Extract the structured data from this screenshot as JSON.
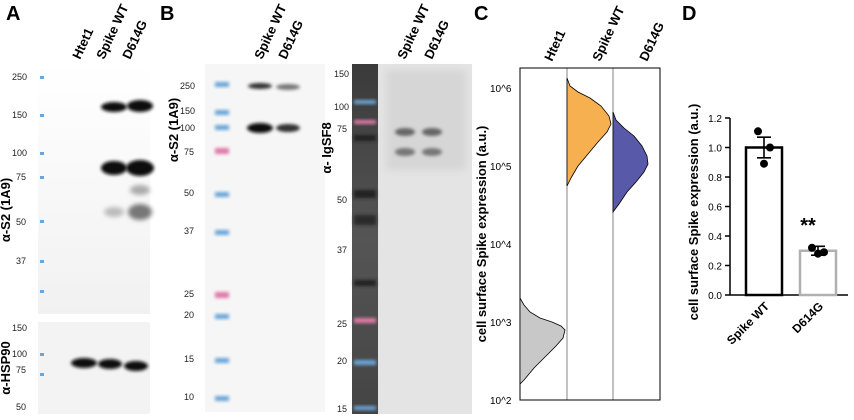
{
  "panels": {
    "a": {
      "label": "A",
      "lanes": [
        "Htet1",
        "Spike WT",
        "D614G"
      ],
      "blot1_ylabel": "α-S2 (1A9)",
      "blot1_markers": [
        "250",
        "150",
        "100",
        "75",
        "50",
        "37"
      ],
      "blot2_ylabel": "α-HSP90",
      "blot2_markers": [
        "150",
        "100",
        "75",
        "50"
      ]
    },
    "b": {
      "label": "B",
      "lanes": [
        "Spike WT",
        "D614G"
      ],
      "blot1_ylabel": "α-S2 (1A9)",
      "blot1_markers": [
        "250",
        "150",
        "100",
        "75",
        "50",
        "37",
        "25",
        "20",
        "15",
        "10"
      ],
      "blot2_lanes": [
        "Spike WT",
        "D614G"
      ],
      "blot2_ylabel": "α- IgSF8",
      "blot2_markers": [
        "150",
        "100",
        "75",
        "50",
        "37",
        "25",
        "20",
        "15"
      ]
    },
    "c": {
      "label": "C",
      "lanes": [
        "Htet1",
        "Spike WT",
        "D614G"
      ],
      "ylabel": "cell surface Spike expression (a.u.)",
      "yticks": [
        "10^6",
        "10^5",
        "10^4",
        "10^3",
        "10^2"
      ],
      "colors": {
        "htet1": "#c8c8c8",
        "spike_wt": "#f7b04f",
        "d614g": "#5859a8"
      }
    },
    "d": {
      "label": "D",
      "significance": "**"
    }
  },
  "chart_data": {
    "type": "bar",
    "categories": [
      "Spike WT",
      "D614G"
    ],
    "values": [
      1.0,
      0.3
    ],
    "errors": [
      0.07,
      0.03
    ],
    "points": [
      [
        1.11,
        1.0,
        0.89
      ],
      [
        0.32,
        0.29,
        0.28
      ]
    ],
    "ylabel": "cell surface Spike expression (a.u.)",
    "ylim": [
      0,
      1.2
    ],
    "yticks": [
      "0.0",
      "0.2",
      "0.4",
      "0.6",
      "0.8",
      "1.0",
      "1.2"
    ],
    "bar_colors": [
      "#000000",
      "#b0b0b0"
    ],
    "grid": false
  }
}
